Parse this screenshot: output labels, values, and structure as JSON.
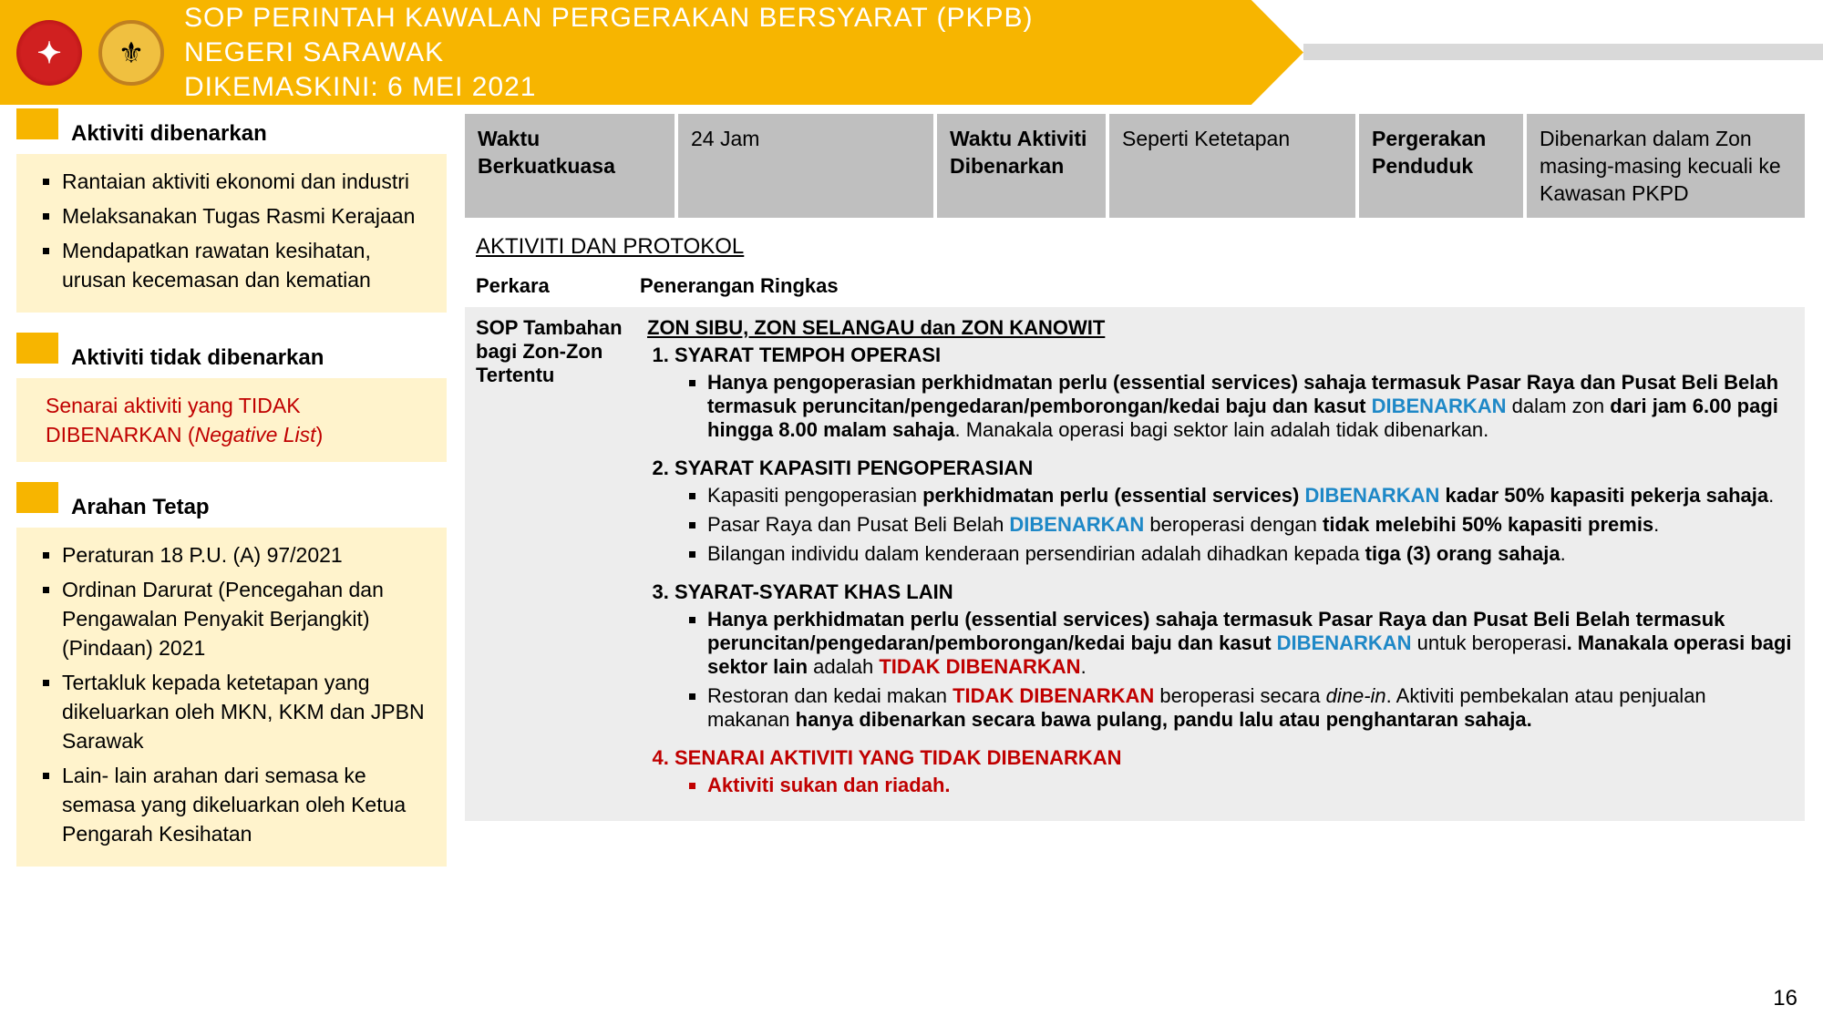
{
  "header": {
    "line1": "SOP PERINTAH KAWALAN PERGERAKAN BERSYARAT (PKPB)",
    "line2": "NEGERI SARAWAK",
    "line3": "DIKEMASKINI: 6 MEI 2021"
  },
  "sidebar": {
    "allowed": {
      "title": "Aktiviti dibenarkan",
      "items": [
        "Rantaian aktiviti  ekonomi dan industri",
        "Melaksanakan  Tugas Rasmi Kerajaan",
        "Mendapatkan rawatan kesihatan, urusan kecemasan dan kematian"
      ]
    },
    "notallowed": {
      "title": "Aktiviti tidak dibenarkan",
      "body_prefix": "Senarai aktiviti yang TIDAK DIBENARKAN (",
      "body_italic": "Negative List",
      "body_suffix": ")"
    },
    "arahan": {
      "title": "Arahan Tetap",
      "items": [
        "Peraturan 18 P.U. (A) 97/2021",
        "Ordinan Darurat (Pencegahan dan Pengawalan Penyakit Berjangkit) (Pindaan) 2021",
        "Tertakluk kepada ketetapan yang dikeluarkan oleh MKN, KKM dan JPBN Sarawak",
        "Lain- lain arahan dari semasa ke semasa yang dikeluarkan oleh  Ketua Pengarah  Kesihatan"
      ]
    }
  },
  "topgrid": {
    "c1h": "Waktu Berkuatkuasa",
    "c1v": "24 Jam",
    "c2h": "Waktu Aktiviti Dibenarkan",
    "c2v": "Seperti Ketetapan",
    "c3h": "Pergerakan Penduduk",
    "c3v": "Dibenarkan dalam Zon masing-masing kecuali ke Kawasan PKPD"
  },
  "section_title": "AKTIVITI DAN PROTOKOL",
  "tbl": {
    "h1": "Perkara",
    "h2": "Penerangan Ringkas",
    "r1c1": "SOP Tambahan bagi Zon-Zon Tertentu",
    "zone": "ZON SIBU, ZON SELANGAU dan ZON KANOWIT",
    "n1_title": "SYARAT TEMPOH OPERASI",
    "n1_a_pre": "Hanya pengoperasian perkhidmatan perlu (essential services) sahaja termasuk Pasar Raya dan Pusat Beli Belah termasuk peruncitan/pengedaran/pemborongan/kedai baju dan kasut ",
    "n1_a_blue": "DIBENARKAN",
    "n1_a_mid": " dalam zon ",
    "n1_a_bold": "dari jam 6.00 pagi hingga 8.00 malam sahaja",
    "n1_a_post": ". Manakala operasi bagi sektor lain adalah tidak dibenarkan.",
    "n2_title": "SYARAT KAPASITI PENGOPERASIAN",
    "n2_a_pre": "Kapasiti pengoperasian ",
    "n2_a_bold1": "perkhidmatan perlu (essential services) ",
    "n2_a_blue": "DIBENARKAN",
    "n2_a_post": " kadar 50% kapasiti pekerja sahaja",
    "n2_b_pre": "Pasar Raya dan Pusat Beli Belah ",
    "n2_b_blue": "DIBENARKAN",
    "n2_b_post": " beroperasi dengan ",
    "n2_b_bold": "tidak melebihi 50% kapasiti premis",
    "n2_c_pre": "Bilangan individu dalam kenderaan persendirian adalah dihadkan kepada ",
    "n2_c_bold": "tiga (3) orang sahaja",
    "n3_title": "SYARAT-SYARAT KHAS LAIN",
    "n3_a_pre": "Hanya perkhidmatan perlu (essential services) sahaja termasuk Pasar Raya dan Pusat Beli Belah termasuk peruncitan/pengedaran/pemborongan/kedai baju dan kasut  ",
    "n3_a_blue": "DIBENARKAN",
    "n3_a_mid": " untuk beroperasi",
    "n3_a_post1": ". Manakala ",
    "n3_a_bold2": "operasi bagi sektor lain",
    "n3_a_post2": " adalah ",
    "n3_a_red": "TIDAK DIBENARKAN",
    "n3_b_pre": "Restoran dan kedai makan ",
    "n3_b_red": "TIDAK DIBENARKAN",
    "n3_b_mid": " beroperasi secara ",
    "n3_b_italic": "dine-in",
    "n3_b_post": ". Aktiviti pembekalan atau penjualan makanan ",
    "n3_b_bold": "hanya dibenarkan secara bawa pulang, pandu lalu atau penghantaran sahaja.",
    "n4_title": "SENARAI AKTIVITI YANG TIDAK DIBENARKAN",
    "n4_a": "Aktiviti sukan dan riadah."
  },
  "page": "16",
  "colors": {
    "yellow": "#f7b500",
    "light_yellow": "#fff3cc",
    "grey_cell": "#bfbfbf",
    "light_grey": "#ededed",
    "blue": "#1e88c7",
    "red": "#c00000"
  }
}
